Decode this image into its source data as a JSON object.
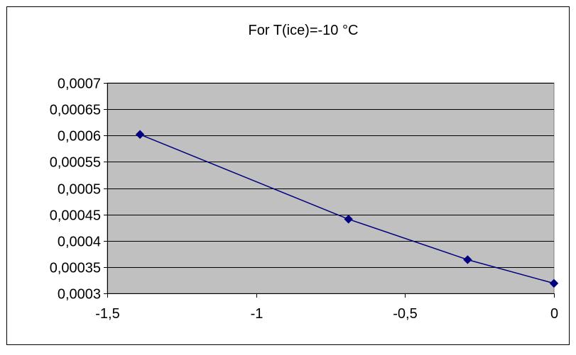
{
  "chart_data": {
    "type": "line",
    "title": "For T(ice)=-10 °C",
    "xlabel": "",
    "ylabel": "",
    "xlim": [
      -1.5,
      0
    ],
    "ylim": [
      0.0003,
      0.0007
    ],
    "x_ticks": [
      -1.5,
      -1,
      -0.5,
      0
    ],
    "x_tick_labels": [
      "-1,5",
      "-1",
      "-0,5",
      "0"
    ],
    "y_ticks": [
      0.0003,
      0.00035,
      0.0004,
      0.00045,
      0.0005,
      0.00055,
      0.0006,
      0.00065,
      0.0007
    ],
    "y_tick_labels": [
      "0,0003",
      "0,00035",
      "0,0004",
      "0,00045",
      "0,0005",
      "0,00055",
      "0,0006",
      "0,00065",
      "0,0007"
    ],
    "grid": {
      "horizontal": true,
      "vertical": false
    },
    "legend": "none",
    "series": [
      {
        "x": [
          -1.39,
          -0.69,
          -0.29,
          0.0
        ],
        "y": [
          0.000602,
          0.000441,
          0.000364,
          0.000319
        ],
        "marker": "diamond"
      }
    ],
    "colors": {
      "plot_background": "#c0c0c0",
      "series": "#000080",
      "grid": "#000000",
      "frame": "#000000"
    }
  }
}
